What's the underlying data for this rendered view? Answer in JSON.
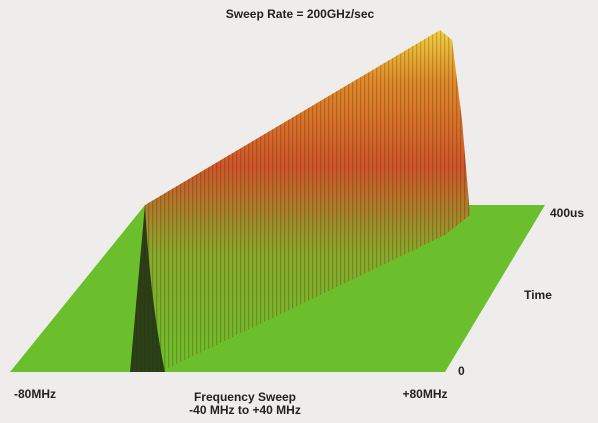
{
  "chart_data": {
    "type": "waterfall",
    "title": "Sweep Rate = 200GHz/sec",
    "xlabel": [
      "Frequency Sweep",
      "-40 MHz to +40 MHz"
    ],
    "xlim": [
      -80,
      80
    ],
    "xticks": [
      {
        "value": -80,
        "label": "-80MHz"
      },
      {
        "value": 80,
        "label": "+80MHz"
      }
    ],
    "ylabel": "Time",
    "ylim": [
      0,
      400
    ],
    "yticks": [
      0,
      {
        "value": 400,
        "label": "400us"
      }
    ]
  }
}
